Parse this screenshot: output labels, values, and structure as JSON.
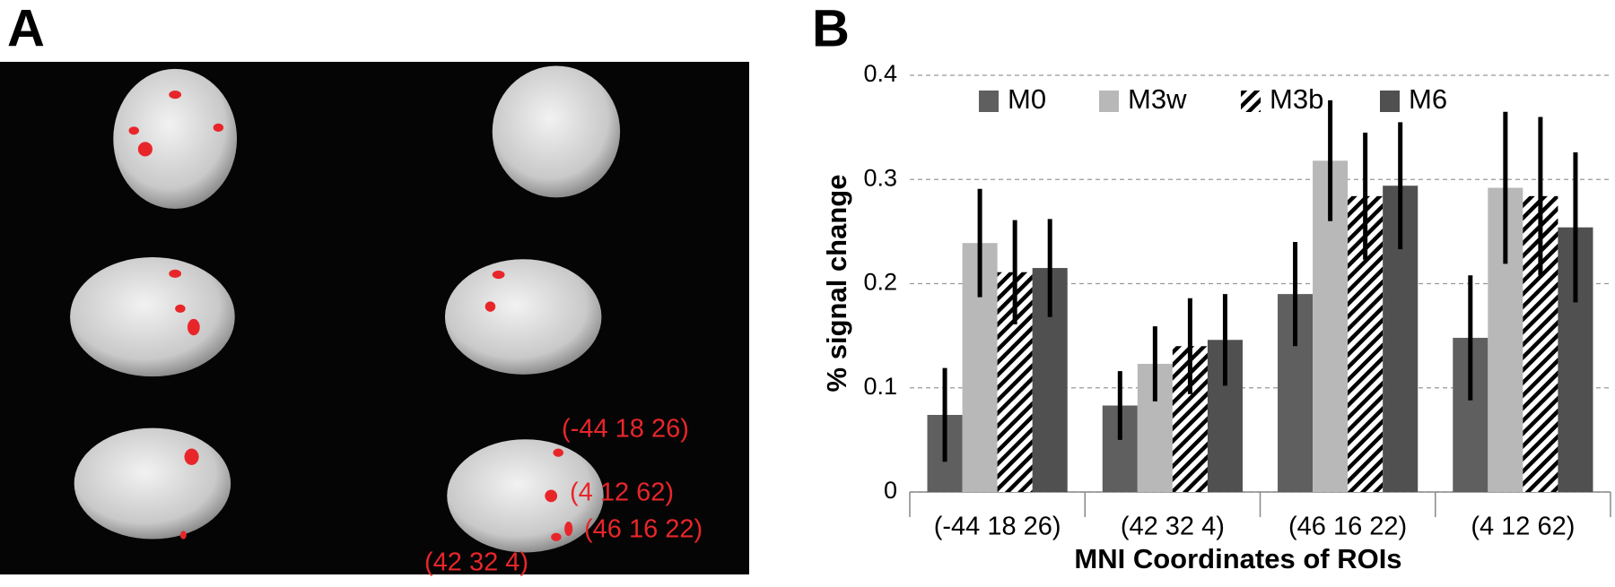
{
  "panel_a": {
    "label": "A",
    "annotations": [
      "(-44 18 26)",
      "(4 12 62)",
      "(46 16 22)",
      "(42 32 4)"
    ]
  },
  "chart_data": {
    "type": "bar",
    "label": "B",
    "ylabel": "% signal change",
    "xlabel": "MNI Coordinates of ROIs",
    "categories": [
      "(-44 18 26)",
      "(42 32 4)",
      "(46 16 22)",
      "(4 12 62)"
    ],
    "series": [
      {
        "name": "M0",
        "color": "#5f5f5f",
        "hatch": false,
        "values": [
          0.074,
          0.083,
          0.19,
          0.148
        ],
        "errors": [
          0.045,
          0.033,
          0.05,
          0.06
        ]
      },
      {
        "name": "M3w",
        "color": "#b8b8b8",
        "hatch": false,
        "values": [
          0.239,
          0.123,
          0.318,
          0.292
        ],
        "errors": [
          0.052,
          0.036,
          0.058,
          0.073
        ]
      },
      {
        "name": "M3b",
        "color": "#000000",
        "hatch": true,
        "values": [
          0.211,
          0.14,
          0.284,
          0.284
        ],
        "errors": [
          0.05,
          0.046,
          0.061,
          0.076
        ]
      },
      {
        "name": "M6",
        "color": "#505050",
        "hatch": false,
        "values": [
          0.215,
          0.146,
          0.294,
          0.254
        ],
        "errors": [
          0.047,
          0.044,
          0.061,
          0.072
        ]
      }
    ],
    "ylim": [
      0,
      0.4
    ],
    "yticks": [
      0,
      0.1,
      0.2,
      0.3,
      0.4
    ],
    "grid": true,
    "legend": "top"
  }
}
